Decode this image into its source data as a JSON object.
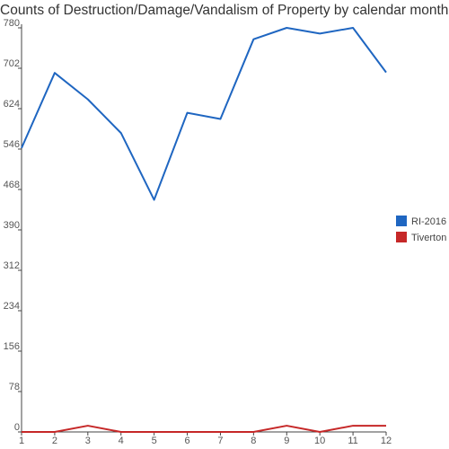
{
  "chart_data": {
    "type": "line",
    "title": "Counts of Destruction/Damage/Vandalism of Property by calendar month",
    "xlabel": "",
    "ylabel": "",
    "x": [
      1,
      2,
      3,
      4,
      5,
      6,
      7,
      8,
      9,
      10,
      11,
      12
    ],
    "xlim": [
      1,
      12
    ],
    "ylim": [
      0,
      780
    ],
    "yticks": [
      0,
      78,
      156,
      234,
      312,
      390,
      468,
      546,
      624,
      702,
      780
    ],
    "grid": false,
    "legend_position": "right",
    "series": [
      {
        "name": "RI-2016",
        "color": "#1f66c1",
        "values": [
          548,
          693,
          642,
          577,
          448,
          616,
          604,
          758,
          780,
          769,
          780,
          694
        ]
      },
      {
        "name": "Tiverton",
        "color": "#c62828",
        "values": [
          0,
          0,
          12,
          0,
          0,
          0,
          0,
          0,
          12,
          0,
          12,
          12
        ]
      }
    ]
  }
}
